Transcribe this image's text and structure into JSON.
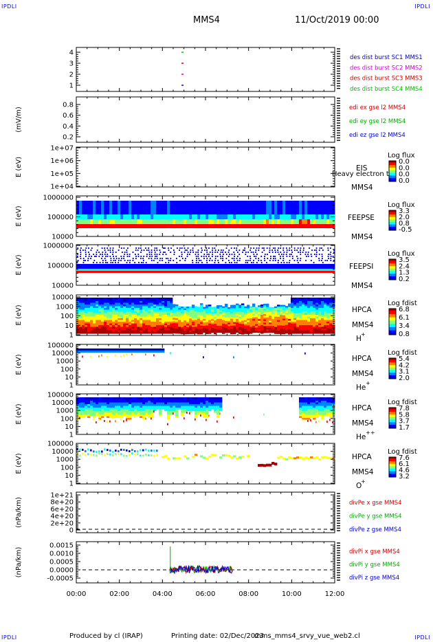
{
  "header": {
    "corner_tag": "IPDLI",
    "spacecraft": "MMS4",
    "date": "11/Oct/2019 00:00"
  },
  "footer": {
    "produced_by": "Produced by cl (IRAP)",
    "printing_date": "Printing date: 02/Dec/2023",
    "filename": "mms_mms4_srvy_vue_web2.cl"
  },
  "x_ticks": [
    "00:00",
    "02:00",
    "04:00",
    "06:00",
    "08:00",
    "10:00",
    "12:00"
  ],
  "panels": {
    "burst": {
      "yticks": [
        "4",
        "3",
        "2",
        "1"
      ],
      "legend": [
        {
          "text": "des dist burst SC1 MMS1",
          "color": "#0000cc"
        },
        {
          "text": "des dist burst SC2 MMS2",
          "color": "#cc00cc"
        },
        {
          "text": "des dist burst SC3 MMS3",
          "color": "#cc0000"
        },
        {
          "text": "des dist burst SC4 MMS4",
          "color": "#00bb00"
        }
      ]
    },
    "edi": {
      "ylabel": "(mV/m)",
      "yticks": [
        "0.8",
        "0.6",
        "0.4",
        "0.2"
      ],
      "legend": [
        {
          "text": "edi ex gse l2 MMS4",
          "color": "#cc0000"
        },
        {
          "text": "edi ey gse l2 MMS4",
          "color": "#00aa00"
        },
        {
          "text": "edi ez gse l2 MMS4",
          "color": "#0000cc"
        }
      ]
    },
    "eis": {
      "ylabel": "E (eV)",
      "yticks": [
        "1e+07",
        "1e+06",
        "1e+05",
        "1e+04"
      ],
      "instrument": "EIS",
      "overlay": "Heavy electron to",
      "sc": "MMS4",
      "cbar_title": "Log flux",
      "cbar_ticks": [
        "0.0",
        "0.0",
        "0.0",
        "0.0"
      ]
    },
    "feepse": {
      "ylabel": "E (eV)",
      "yticks": [
        "1000000",
        "100000",
        "10000"
      ],
      "instrument": "FEEPSE",
      "sc": "MMS4",
      "cbar_title": "Log flux",
      "cbar_ticks": [
        "3.3",
        "2.0",
        "0.8",
        "-0.5"
      ]
    },
    "feepsi": {
      "ylabel": "E (eV)",
      "yticks": [
        "1000000",
        "100000",
        "10000"
      ],
      "instrument": "FEEPSI",
      "sc": "MMS4",
      "cbar_title": "Log flux",
      "cbar_ticks": [
        "3.5",
        "2.4",
        "1.3",
        "0.2"
      ]
    },
    "hpca_h": {
      "ylabel": "E (eV)",
      "yticks": [
        "10000",
        "1000",
        "100",
        "10",
        "1"
      ],
      "instrument": "HPCA",
      "sc": "MMS4",
      "species": "H",
      "charge": "+",
      "cbar_title": "Log fdist",
      "cbar_ticks": [
        "6.8",
        "6.1",
        "3.4",
        "0.8"
      ]
    },
    "hpca_he": {
      "ylabel": "E (eV)",
      "yticks": [
        "100000",
        "10000",
        "1000",
        "100",
        "10",
        "1"
      ],
      "instrument": "HPCA",
      "sc": "MMS4",
      "species": "He",
      "charge": "+",
      "cbar_title": "Log fdist",
      "cbar_ticks": [
        "5.4",
        "4.2",
        "3.1",
        "2.0"
      ]
    },
    "hpca_he2": {
      "ylabel": "E (eV)",
      "yticks": [
        "100000",
        "10000",
        "1000",
        "100",
        "10",
        "1"
      ],
      "instrument": "HPCA",
      "sc": "MMS4",
      "species": "He",
      "charge": "++",
      "cbar_title": "Log fdist",
      "cbar_ticks": [
        "7.8",
        "5.8",
        "3.7",
        "1.7"
      ]
    },
    "hpca_o": {
      "ylabel": "E (eV)",
      "yticks": [
        "100000",
        "10000",
        "1000",
        "100",
        "10",
        "1"
      ],
      "instrument": "HPCA",
      "sc": "MMS4",
      "species": "O",
      "charge": "+",
      "cbar_title": "Log fdist",
      "cbar_ticks": [
        "7.6",
        "6.1",
        "4.6",
        "3.2"
      ]
    },
    "divpe": {
      "ylabel": "(nPa/km)",
      "yticks": [
        "1e+21",
        "8e+20",
        "6e+20",
        "4e+20",
        "2e+20",
        "0"
      ],
      "legend": [
        {
          "text": "divPe x gse MMS4",
          "color": "#cc0000"
        },
        {
          "text": "divPe y gse MMS4",
          "color": "#00aa00"
        },
        {
          "text": "divPe z gse MMS4",
          "color": "#0000cc"
        }
      ]
    },
    "divpi": {
      "ylabel": "(nPa/km)",
      "yticks": [
        "0.0015",
        "0.0010",
        "0.0005",
        "0.0000",
        "-0.0005"
      ],
      "legend": [
        {
          "text": "divPi x gse MMS4",
          "color": "#cc0000"
        },
        {
          "text": "divPi y gse MMS4",
          "color": "#00aa00"
        },
        {
          "text": "divPi z gse MMS4",
          "color": "#0000cc"
        }
      ]
    }
  },
  "chart_data": [
    {
      "type": "scatter",
      "series": [
        {
          "name": "des dist burst SC1 MMS1",
          "x": [
            "04:55"
          ],
          "values": [
            1
          ]
        },
        {
          "name": "des dist burst SC2 MMS2",
          "x": [
            "04:55"
          ],
          "values": [
            2
          ]
        },
        {
          "name": "des dist burst SC3 MMS3",
          "x": [
            "04:55"
          ],
          "values": [
            3
          ]
        },
        {
          "name": "des dist burst SC4 MMS4",
          "x": [
            "04:55"
          ],
          "values": [
            4
          ]
        }
      ],
      "xlim": [
        "00:00",
        "12:00"
      ],
      "ylim": [
        0.5,
        4.5
      ]
    },
    {
      "type": "line",
      "series": [
        {
          "name": "edi ex gse l2 MMS4",
          "values": []
        },
        {
          "name": "edi ey gse l2 MMS4",
          "values": []
        },
        {
          "name": "edi ez gse l2 MMS4",
          "values": []
        }
      ],
      "ylabel": "(mV/m)",
      "ylim": [
        0.1,
        0.9
      ]
    },
    {
      "type": "heatmap",
      "ylabel": "E (eV)",
      "ylog": true,
      "ylim": [
        10000,
        10000000
      ],
      "values": []
    },
    {
      "type": "heatmap",
      "ylabel": "E (eV)",
      "ylog": true,
      "ylim": [
        10000,
        1000000
      ],
      "colorbar": {
        "title": "Log flux",
        "range": [
          -0.5,
          3.3
        ]
      },
      "bands": [
        {
          "E_range": [
            33000,
            40000
          ],
          "level": 3.3
        },
        {
          "E_range": [
            40000,
            55000
          ],
          "level": 2.2
        },
        {
          "E_range": [
            55000,
            600000
          ],
          "level": 0.9
        }
      ]
    },
    {
      "type": "heatmap",
      "ylabel": "E (eV)",
      "ylog": true,
      "ylim": [
        10000,
        1000000
      ],
      "colorbar": {
        "title": "Log flux",
        "range": [
          0.2,
          3.5
        ]
      },
      "bands": [
        {
          "E_range": [
            55000,
            60000
          ],
          "level": 3.5
        },
        {
          "E_range": [
            60000,
            65000
          ],
          "level": 2.8
        },
        {
          "E_range": [
            65000,
            300000
          ],
          "level": 0.8
        }
      ]
    },
    {
      "type": "heatmap",
      "ylabel": "E (eV)",
      "ylog": true,
      "ylim": [
        1,
        40000
      ],
      "colorbar": {
        "title": "Log fdist",
        "range": [
          0.8,
          6.8
        ]
      }
    },
    {
      "type": "heatmap",
      "ylabel": "E (eV)",
      "ylog": true,
      "ylim": [
        1,
        100000
      ],
      "colorbar": {
        "title": "Log fdist",
        "range": [
          2.0,
          5.4
        ]
      }
    },
    {
      "type": "heatmap",
      "ylabel": "E (eV)",
      "ylog": true,
      "ylim": [
        1,
        100000
      ],
      "colorbar": {
        "title": "Log fdist",
        "range": [
          1.7,
          7.8
        ]
      }
    },
    {
      "type": "heatmap",
      "ylabel": "E (eV)",
      "ylog": true,
      "ylim": [
        1,
        100000
      ],
      "colorbar": {
        "title": "Log fdist",
        "range": [
          3.2,
          7.6
        ]
      }
    },
    {
      "type": "line",
      "ylabel": "(nPa/km)",
      "ylim": [
        -5e+19,
        1.1e+21
      ],
      "series": [
        {
          "name": "divPe x gse MMS4",
          "values": []
        },
        {
          "name": "divPe y gse MMS4",
          "values": []
        },
        {
          "name": "divPe z gse MMS4",
          "values": []
        }
      ]
    },
    {
      "type": "line",
      "ylabel": "(nPa/km)",
      "ylim": [
        -0.0008,
        0.0016
      ],
      "xrange": [
        "04:20",
        "07:15"
      ],
      "series": [
        {
          "name": "divPi x gse MMS4",
          "values_range": [
            -0.0003,
            0.0002
          ]
        },
        {
          "name": "divPi y gse MMS4",
          "values_range": [
            -0.0003,
            0.0014
          ]
        },
        {
          "name": "divPi z gse MMS4",
          "values_range": [
            -0.0003,
            0.0003
          ]
        }
      ]
    }
  ],
  "colors": {
    "axis": "#000000",
    "legend_blue": "#0000cc",
    "jet": [
      "#0000aa",
      "#0000ff",
      "#0080ff",
      "#00ffff",
      "#80ff80",
      "#ffff00",
      "#ff8000",
      "#ff0000",
      "#aa0000"
    ]
  }
}
